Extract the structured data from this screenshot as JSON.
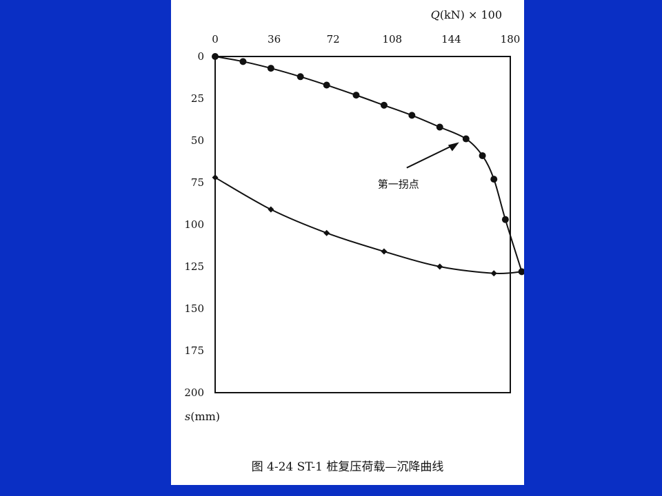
{
  "colors": {
    "background": "#0a2fc4",
    "panel": "#ffffff",
    "ink": "#111111"
  },
  "chart_data": {
    "type": "line",
    "title": "",
    "caption": "图 4-24   ST-1 桩复压荷载—沉降曲线",
    "x_axis": {
      "position": "top",
      "label_italic": "Q",
      "label_rest": "(kN) × 100",
      "range": [
        0,
        180
      ],
      "ticks": [
        0,
        36,
        72,
        108,
        144,
        180
      ]
    },
    "y_axis": {
      "label_italic": "s",
      "label_rest": "(mm)",
      "range": [
        0,
        200
      ],
      "inverted": true,
      "ticks": [
        0,
        25,
        50,
        75,
        100,
        125,
        150,
        175,
        200
      ]
    },
    "grid": false,
    "legend": "none",
    "series": [
      {
        "segment": "loading",
        "marker": "circle",
        "x": [
          0,
          17,
          34,
          52,
          68,
          86,
          103,
          120,
          137,
          153,
          163,
          170,
          177,
          187
        ],
        "y": [
          0,
          3,
          7,
          12,
          17,
          23,
          29,
          35,
          42,
          49,
          59,
          73,
          97,
          128
        ]
      },
      {
        "segment": "unloading",
        "marker": "diamond",
        "x": [
          187,
          170,
          137,
          103,
          68,
          34,
          0
        ],
        "y": [
          128,
          129,
          125,
          116,
          105,
          91,
          72
        ]
      }
    ],
    "annotations": [
      {
        "text": "第一拐点",
        "point": [
          153,
          49
        ]
      }
    ]
  }
}
